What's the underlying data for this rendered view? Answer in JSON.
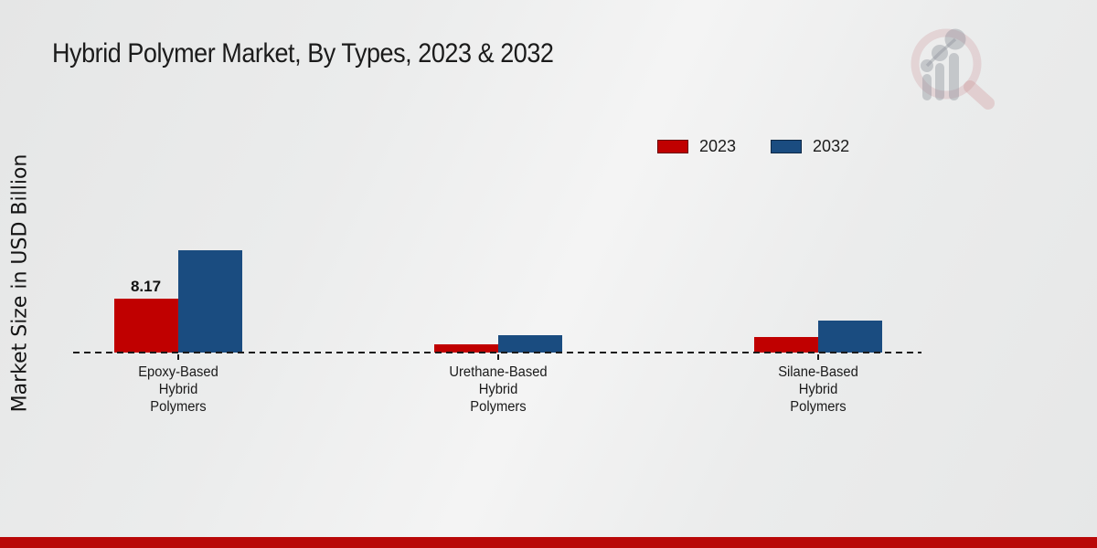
{
  "header": {
    "title": "Hybrid Polymer Market, By Types, 2023 & 2032"
  },
  "y_axis": {
    "label": "Market Size in USD Billion"
  },
  "legend": {
    "items": [
      {
        "label": "2023",
        "color": "#c00000"
      },
      {
        "label": "2032",
        "color": "#1a4c80"
      }
    ]
  },
  "colors": {
    "series_2023": "#c00000",
    "series_2032": "#1a4c80",
    "bottom_bar": "#b90808",
    "axis_line": "#1b1b1b"
  },
  "chart_data": {
    "type": "bar",
    "title": "Hybrid Polymer Market, By Types, 2023 & 2032",
    "xlabel": "",
    "ylabel": "Market Size in USD Billion",
    "categories": [
      "Epoxy-Based\nHybrid\nPolymers",
      "Urethane-Based\nHybrid\nPolymers",
      "Silane-Based\nHybrid\nPolymers"
    ],
    "series": [
      {
        "name": "2023",
        "color": "#c00000",
        "values": [
          8.17,
          1.2,
          2.4
        ]
      },
      {
        "name": "2032",
        "color": "#1a4c80",
        "values": [
          15.5,
          2.6,
          4.8
        ]
      }
    ],
    "data_labels": [
      {
        "series": "2023",
        "category_index": 0,
        "text": "8.17"
      }
    ],
    "ylim": [
      0,
      16.5
    ],
    "grid": false,
    "baseline_style": "dashed",
    "legend_position": "top-right"
  }
}
